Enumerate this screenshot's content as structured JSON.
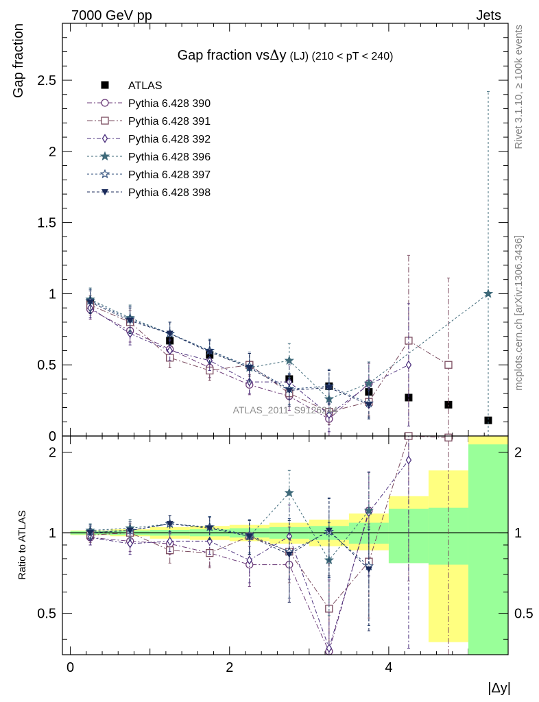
{
  "header": {
    "left": "7000 GeV pp",
    "right": "Jets",
    "rivet": "Rivet 3.1.10, ≥ 100k events",
    "mcplots": "mcplots.cern.ch [arXiv:1306.3436]",
    "analysis": "ATLAS_2011_S9126244"
  },
  "chart_data": [
    {
      "type": "scatter",
      "title": "Gap fraction vsΔy (LJ) (210 < pT < 240)",
      "title_main": "Gap fraction vs",
      "title_delta": "Δ",
      "title_y": "y",
      "title_suffix": "(LJ) (210 < pT < 240)",
      "xlabel": "|Δy|",
      "ylabel": "Gap fraction",
      "xlim": [
        -0.1,
        5.5
      ],
      "ylim": [
        0,
        2.9
      ],
      "x_ticks": [
        "0",
        "2",
        "4"
      ],
      "y_ticks": [
        "0",
        "0.5",
        "1",
        "1.5",
        "2",
        "2.5"
      ],
      "legend_position": "top-left",
      "x": [
        0.25,
        0.75,
        1.25,
        1.75,
        2.25,
        2.75,
        3.25,
        3.75,
        4.25,
        4.75,
        5.25
      ],
      "series": [
        {
          "name": "ATLAS",
          "color": "#000000",
          "marker": "square",
          "dash": "",
          "values": [
            0.94,
            0.8,
            0.67,
            0.57,
            0.5,
            0.4,
            0.35,
            0.31,
            0.27,
            0.22,
            0.11
          ],
          "err": [
            0,
            0,
            0,
            0,
            0,
            0,
            0,
            0,
            0,
            0,
            0
          ]
        },
        {
          "name": "Pythia 6.428 390",
          "color": "#6b3a78",
          "marker": "circle",
          "dash": "7,3,2,3",
          "values": [
            0.89,
            0.74,
            0.61,
            0.48,
            0.36,
            0.28,
            0.12,
            0.37,
            null,
            null,
            null
          ],
          "err": [
            0.07,
            0.08,
            0.07,
            0.07,
            0.07,
            0.1,
            0.12,
            0.14,
            null,
            null,
            null
          ]
        },
        {
          "name": "Pythia 6.428 391",
          "color": "#7a4a5e",
          "marker": "open-square",
          "dash": "8,3,2,3",
          "values": [
            0.92,
            0.8,
            0.55,
            0.46,
            0.5,
            0.3,
            0.17,
            0.24,
            0.67,
            0.5,
            null
          ],
          "err": [
            0.07,
            0.08,
            0.07,
            0.07,
            0.08,
            0.09,
            0.09,
            0.1,
            0.6,
            0.61,
            null
          ]
        },
        {
          "name": "Pythia 6.428 392",
          "color": "#4a2e7c",
          "marker": "diamond",
          "dash": "6,3,2,3",
          "values": [
            0.9,
            0.72,
            0.6,
            0.53,
            0.38,
            0.38,
            0.15,
            0.36,
            0.5,
            null,
            null
          ],
          "err": [
            0.07,
            0.08,
            0.07,
            0.07,
            0.08,
            0.12,
            0.12,
            0.16,
            0.43,
            null,
            null
          ]
        },
        {
          "name": "Pythia 6.428 396",
          "color": "#3f6a7a",
          "marker": "star",
          "dash": "3,3",
          "values": [
            0.96,
            0.83,
            0.72,
            0.6,
            0.48,
            0.53,
            0.26,
            0.37,
            null,
            null,
            1.0
          ],
          "err": [
            0.08,
            0.09,
            0.08,
            0.08,
            0.1,
            0.12,
            0.1,
            0.15,
            null,
            null,
            1.42
          ]
        },
        {
          "name": "Pythia 6.428 397",
          "color": "#2e4d7a",
          "marker": "open-star",
          "dash": "3,3",
          "values": [
            0.95,
            0.82,
            0.72,
            0.6,
            0.49,
            0.33,
            0.35,
            0.23,
            null,
            null,
            null
          ],
          "err": [
            0.08,
            0.09,
            0.08,
            0.08,
            0.1,
            0.11,
            0.12,
            0.1,
            null,
            null,
            null
          ]
        },
        {
          "name": "Pythia 6.428 398",
          "color": "#1a2a5a",
          "marker": "triangle-down",
          "dash": "4,3",
          "values": [
            0.94,
            0.81,
            0.72,
            0.59,
            0.48,
            0.32,
            0.34,
            0.22,
            null,
            null,
            null
          ],
          "err": [
            0.08,
            0.09,
            0.08,
            0.08,
            0.1,
            0.11,
            0.12,
            0.1,
            null,
            null,
            null
          ]
        }
      ]
    },
    {
      "type": "scatter",
      "title": "",
      "xlabel": "|Δy|",
      "ylabel": "Ratio to ATLAS",
      "xlim": [
        -0.1,
        5.5
      ],
      "ylim": [
        0.35,
        2.3
      ],
      "y_ticks": [
        "0.5",
        "1",
        "2"
      ],
      "reference_line": 1,
      "bands": {
        "x_edges": [
          0.0,
          0.5,
          1.0,
          1.5,
          2.0,
          2.5,
          3.0,
          3.5,
          4.0,
          4.5,
          5.0,
          5.5
        ],
        "stat": [
          [
            0.985,
            1.015
          ],
          [
            0.98,
            1.02
          ],
          [
            0.975,
            1.025
          ],
          [
            0.97,
            1.03
          ],
          [
            0.96,
            1.04
          ],
          [
            0.95,
            1.05
          ],
          [
            0.94,
            1.06
          ],
          [
            0.91,
            1.09
          ],
          [
            0.77,
            1.23
          ],
          [
            0.76,
            1.24
          ],
          [
            0.35,
            2.14
          ]
        ],
        "syst": [
          [
            0.98,
            1.02
          ],
          [
            0.97,
            1.03
          ],
          [
            0.95,
            1.05
          ],
          [
            0.94,
            1.06
          ],
          [
            0.93,
            1.07
          ],
          [
            0.91,
            1.09
          ],
          [
            0.89,
            1.12
          ],
          [
            0.86,
            1.18
          ],
          [
            0.77,
            1.37
          ],
          [
            0.39,
            1.71
          ],
          [
            0.35,
            2.3
          ]
        ],
        "stat_color": "#99ff99",
        "syst_color": "#ffff80"
      },
      "series": [
        {
          "name": "Pythia 6.428 390",
          "color": "#6b3a78",
          "marker": "circle",
          "dash": "7,3,2,3",
          "values": [
            0.96,
            0.93,
            0.91,
            0.84,
            0.76,
            0.76,
            0.36,
            1.21,
            null,
            null,
            null
          ],
          "err": [
            0.06,
            0.08,
            0.08,
            0.09,
            0.13,
            0.21,
            0.3,
            0.47,
            null,
            null,
            null
          ]
        },
        {
          "name": "Pythia 6.428 391",
          "color": "#7a4a5e",
          "marker": "open-square",
          "dash": "8,3,2,3",
          "values": [
            0.98,
            1.0,
            0.86,
            0.84,
            0.97,
            0.85,
            0.52,
            0.78,
            2.36,
            2.27,
            null
          ],
          "err": [
            0.06,
            0.08,
            0.09,
            0.1,
            0.14,
            0.2,
            0.25,
            0.3,
            1.7,
            2.1,
            null
          ]
        },
        {
          "name": "Pythia 6.428 392",
          "color": "#4a2e7c",
          "marker": "diamond",
          "dash": "6,3,2,3",
          "values": [
            0.96,
            0.91,
            0.93,
            0.93,
            0.79,
            0.97,
            0.37,
            1.19,
            1.87,
            null,
            null
          ],
          "err": [
            0.06,
            0.08,
            0.08,
            0.1,
            0.14,
            0.3,
            0.3,
            0.5,
            1.5,
            null,
            null
          ]
        },
        {
          "name": "Pythia 6.428 396",
          "color": "#3f6a7a",
          "marker": "star",
          "dash": "3,3",
          "values": [
            1.02,
            1.04,
            1.08,
            1.05,
            0.97,
            1.41,
            0.79,
            1.21,
            null,
            null,
            null
          ],
          "err": [
            0.06,
            0.08,
            0.08,
            0.1,
            0.14,
            0.3,
            0.3,
            0.47,
            null,
            null,
            null
          ]
        },
        {
          "name": "Pythia 6.428 397",
          "color": "#2e4d7a",
          "marker": "open-star",
          "dash": "3,3",
          "values": [
            1.01,
            1.02,
            1.08,
            1.05,
            0.98,
            0.85,
            1.01,
            0.75,
            null,
            null,
            null
          ],
          "err": [
            0.06,
            0.08,
            0.08,
            0.1,
            0.14,
            0.28,
            0.33,
            0.3,
            null,
            null,
            null
          ]
        },
        {
          "name": "Pythia 6.428 398",
          "color": "#1a2a5a",
          "marker": "triangle-down",
          "dash": "4,3",
          "values": [
            1.0,
            1.02,
            1.08,
            1.04,
            0.97,
            0.83,
            1.02,
            0.73,
            null,
            null,
            null
          ],
          "err": [
            0.06,
            0.08,
            0.08,
            0.1,
            0.14,
            0.28,
            0.33,
            0.3,
            null,
            null,
            null
          ]
        }
      ]
    }
  ]
}
